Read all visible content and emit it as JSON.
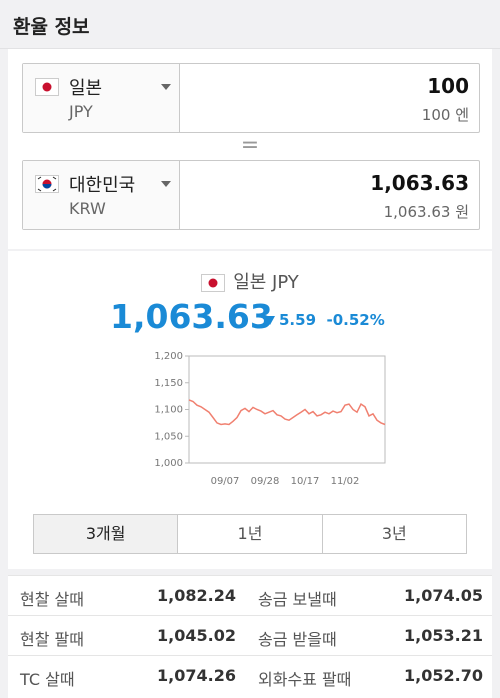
{
  "header": {
    "title": "환율 정보"
  },
  "converter": {
    "from": {
      "country": "일본",
      "code": "JPY",
      "amount": "100",
      "amount_label": "100 엔"
    },
    "equals": "=",
    "to": {
      "country": "대한민국",
      "code": "KRW",
      "amount": "1,063.63",
      "amount_label": "1,063.63 원"
    }
  },
  "summary": {
    "currency": "일본 JPY",
    "rate": "1,063.63",
    "change": "5.59",
    "change_pct": "-0.52%"
  },
  "chart_data": {
    "type": "line",
    "categories": [
      null,
      null,
      null,
      null,
      null,
      null,
      null,
      null,
      null,
      "09/07",
      null,
      null,
      null,
      null,
      null,
      null,
      null,
      null,
      null,
      "09/28",
      null,
      null,
      null,
      null,
      null,
      null,
      null,
      null,
      null,
      "10/17",
      null,
      null,
      null,
      null,
      null,
      null,
      null,
      null,
      null,
      "11/02",
      null,
      null,
      null,
      null,
      null,
      null,
      null,
      null,
      null,
      null
    ],
    "values": [
      1118,
      1115,
      1108,
      1105,
      1100,
      1095,
      1085,
      1075,
      1072,
      1073,
      1072,
      1078,
      1085,
      1098,
      1102,
      1096,
      1104,
      1100,
      1097,
      1092,
      1095,
      1098,
      1090,
      1088,
      1082,
      1080,
      1085,
      1090,
      1095,
      1100,
      1092,
      1096,
      1088,
      1090,
      1095,
      1092,
      1097,
      1094,
      1096,
      1108,
      1110,
      1100,
      1095,
      1110,
      1105,
      1088,
      1092,
      1080,
      1075,
      1072
    ],
    "color": "#f08070",
    "ylim": [
      1000,
      1200
    ],
    "yticks": [
      {
        "value": 1000,
        "label": "1,000"
      },
      {
        "value": 1050,
        "label": "1,050"
      },
      {
        "value": 1100,
        "label": "1,100"
      },
      {
        "value": 1150,
        "label": "1,150"
      },
      {
        "value": 1200,
        "label": "1,200"
      }
    ]
  },
  "tabs": {
    "items": [
      "3개월",
      "1년",
      "3년"
    ],
    "active": 0
  },
  "table": {
    "rows": [
      [
        "현찰 살때",
        "1,082.24",
        "송금 보낼때",
        "1,074.05"
      ],
      [
        "현찰 팔때",
        "1,045.02",
        "송금 받을때",
        "1,053.21"
      ],
      [
        "TC 살때",
        "1,074.26",
        "외화수표 팔때",
        "1,052.70"
      ]
    ]
  }
}
